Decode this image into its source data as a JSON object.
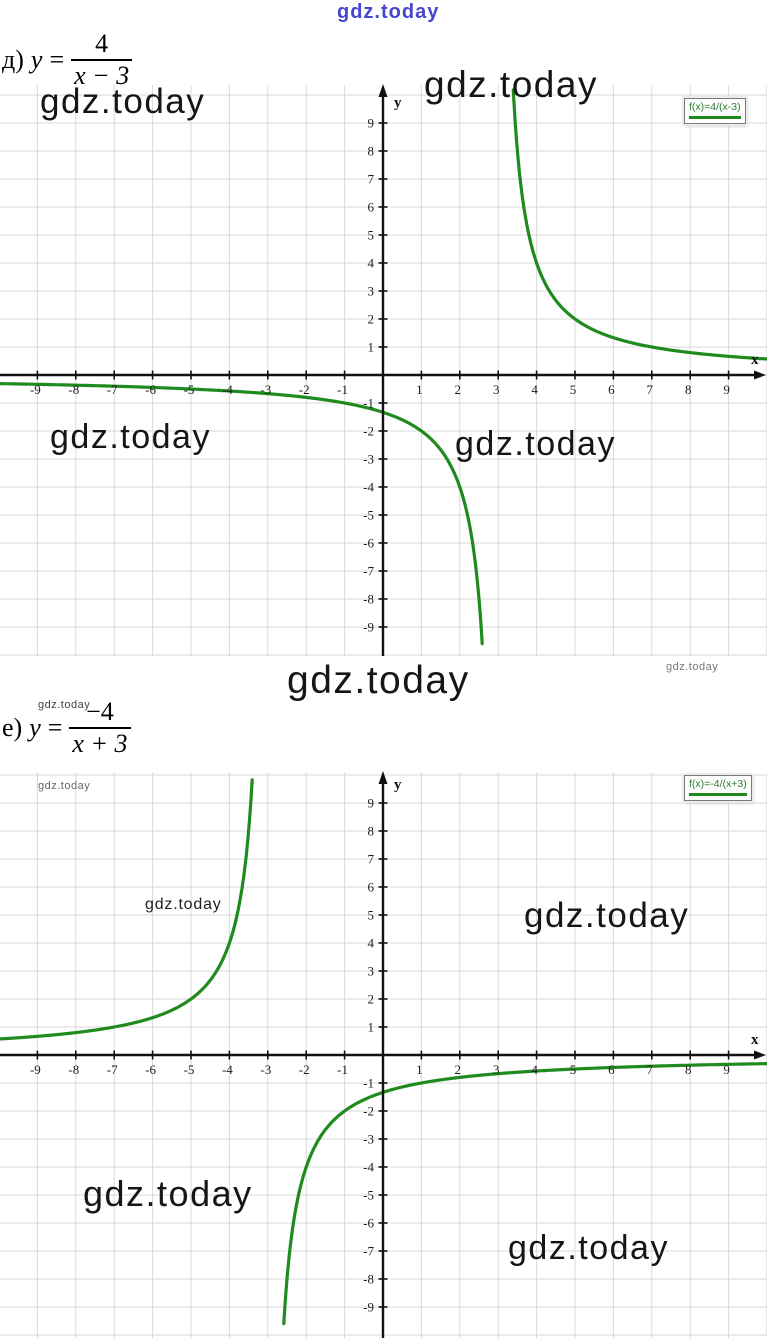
{
  "page_watermark": {
    "text": "gdz.today",
    "color": "#4646cf"
  },
  "problems": [
    {
      "label": "д)",
      "var": "y",
      "eq_sign": "=",
      "numerator": "4",
      "denominator": "x − 3"
    },
    {
      "label": "е)",
      "var": "y",
      "eq_sign": "=",
      "numerator": "−4",
      "denominator": "x + 3"
    }
  ],
  "chart_data": [
    {
      "type": "line",
      "title": "f(x)=4/(x-3)",
      "legend": "f(x)=4/(x-3)",
      "equation_label": "д)",
      "equation": "y = 4/(x − 3)",
      "function_params": {
        "k": 4,
        "x0": 3
      },
      "asymptotes": {
        "vertical_x": 3,
        "horizontal_y": 0
      },
      "xlabel": "x",
      "ylabel": "y",
      "xlim": [
        -10,
        10
      ],
      "ylim": [
        -10.3,
        10.3
      ],
      "grid": true,
      "legend_position": "top-right",
      "curve_color": "#1f8b1f",
      "x_ticks": [
        -9,
        -8,
        -7,
        -6,
        -5,
        -4,
        -3,
        -2,
        -1,
        1,
        2,
        3,
        4,
        5,
        6,
        7,
        8,
        9
      ],
      "y_ticks": [
        -9,
        -8,
        -7,
        -6,
        -5,
        -4,
        -3,
        -2,
        -1,
        1,
        2,
        3,
        4,
        5,
        6,
        7,
        8,
        9
      ],
      "sample_points": [
        [
          -9,
          -0.33
        ],
        [
          -7,
          -0.4
        ],
        [
          -5,
          -0.5
        ],
        [
          -3,
          -0.67
        ],
        [
          -1,
          -1
        ],
        [
          0,
          -1.33
        ],
        [
          1,
          -2
        ],
        [
          2,
          -4
        ],
        [
          2.5,
          -8
        ],
        [
          3.5,
          8
        ],
        [
          4,
          4
        ],
        [
          5,
          2
        ],
        [
          6,
          1.33
        ],
        [
          7,
          1
        ],
        [
          9,
          0.67
        ]
      ]
    },
    {
      "type": "line",
      "title": "f(x)=-4/(x+3)",
      "legend": "f(x)=-4/(x+3)",
      "equation_label": "е)",
      "equation": "y = −4/(x + 3)",
      "function_params": {
        "k": -4,
        "x0": -3
      },
      "asymptotes": {
        "vertical_x": -3,
        "horizontal_y": 0
      },
      "xlabel": "x",
      "ylabel": "y",
      "xlim": [
        -10,
        10
      ],
      "ylim": [
        -10.3,
        10.3
      ],
      "grid": true,
      "legend_position": "top-right",
      "curve_color": "#1f8b1f",
      "x_ticks": [
        -9,
        -8,
        -7,
        -6,
        -5,
        -4,
        -3,
        -2,
        -1,
        1,
        2,
        3,
        4,
        5,
        6,
        7,
        8,
        9
      ],
      "y_ticks": [
        -9,
        -8,
        -7,
        -6,
        -5,
        -4,
        -3,
        -2,
        -1,
        1,
        2,
        3,
        4,
        5,
        6,
        7,
        8,
        9
      ],
      "sample_points": [
        [
          -9,
          0.67
        ],
        [
          -7,
          1
        ],
        [
          -5,
          2
        ],
        [
          -4,
          4
        ],
        [
          -3.5,
          8
        ],
        [
          -2.5,
          -8
        ],
        [
          -2,
          -4
        ],
        [
          -1,
          -2
        ],
        [
          0,
          -1.33
        ],
        [
          1,
          -1
        ],
        [
          3,
          -0.67
        ],
        [
          5,
          -0.5
        ],
        [
          7,
          -0.4
        ],
        [
          9,
          -0.33
        ]
      ]
    }
  ]
}
